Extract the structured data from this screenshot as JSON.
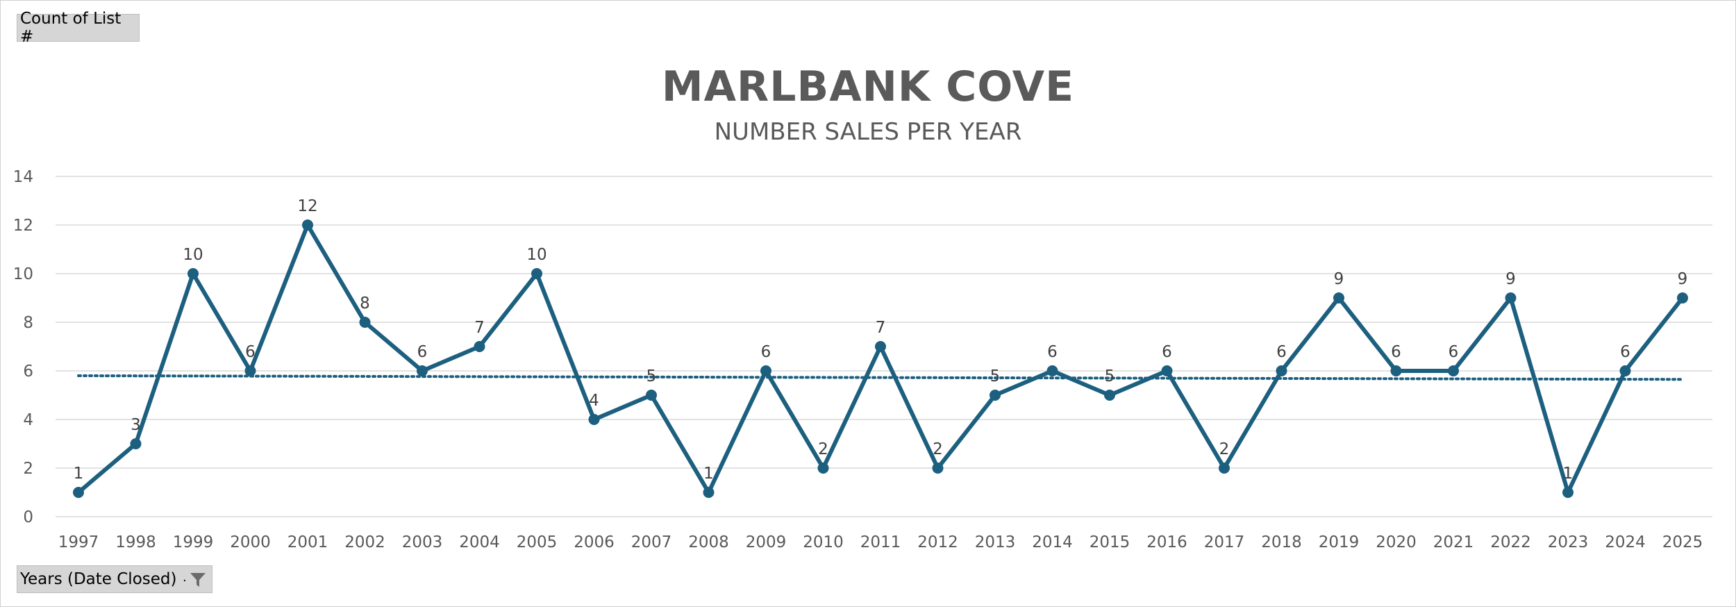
{
  "pivot": {
    "value_field": "Count of List #",
    "axis_field": "Years (Date Closed)"
  },
  "colors": {
    "series": "#1c5f7f",
    "gridline": "#d9d9d9",
    "trendline": "#1c5f7f"
  },
  "chart_data": {
    "type": "line",
    "title": "MARLBANK COVE",
    "subtitle": "NUMBER SALES PER YEAR",
    "xlabel": "",
    "ylabel": "",
    "categories": [
      "1997",
      "1998",
      "1999",
      "2000",
      "2001",
      "2002",
      "2003",
      "2004",
      "2005",
      "2006",
      "2007",
      "2008",
      "2009",
      "2010",
      "2011",
      "2012",
      "2013",
      "2014",
      "2015",
      "2016",
      "2017",
      "2018",
      "2019",
      "2020",
      "2021",
      "2022",
      "2023",
      "2024",
      "2025"
    ],
    "series": [
      {
        "values": [
          1,
          3,
          10,
          6,
          12,
          8,
          6,
          7,
          10,
          4,
          5,
          1,
          6,
          2,
          7,
          2,
          5,
          6,
          5,
          6,
          2,
          6,
          9,
          6,
          6,
          9,
          1,
          6,
          9
        ]
      }
    ],
    "trendline": {
      "type": "linear",
      "start": 5.8,
      "end": 5.65
    },
    "ylim": [
      0,
      14
    ],
    "yticks": [
      0,
      2,
      4,
      6,
      8,
      10,
      12,
      14
    ],
    "grid": true,
    "data_labels": true,
    "legend": "none"
  }
}
